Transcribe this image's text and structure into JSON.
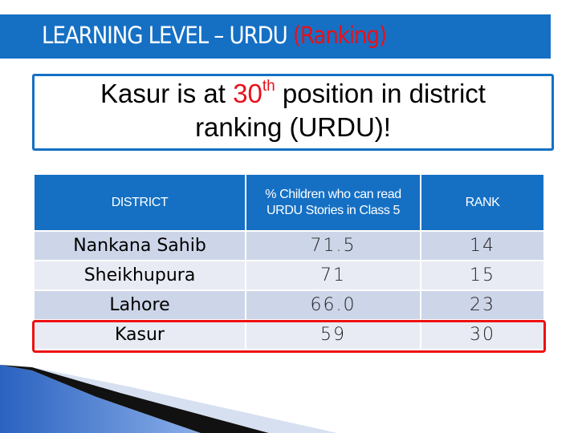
{
  "slide": {
    "title_main": "LEARNING LEVEL – URDU ",
    "title_highlight": "(Ranking)",
    "callout": {
      "prefix": "Kasur is at ",
      "rank_number": "30",
      "rank_suffix": "th",
      "suffix_line1": " position in district",
      "line2": "ranking (URDU)!"
    },
    "table": {
      "headers": [
        "DISTRICT",
        "% Children  who can read URDU  Stories in Class 5",
        "RANK"
      ],
      "rows": [
        [
          "Nankana Sahib",
          "71.5",
          "14"
        ],
        [
          "Sheikhupura",
          "71",
          "15"
        ],
        [
          "Lahore",
          "66.0",
          "23"
        ],
        [
          "Kasur",
          "59",
          "30"
        ]
      ],
      "highlighted_row": "Kasur"
    },
    "colors": {
      "accent": "#1570c4",
      "highlight": "#e8101a",
      "row_odd": "#cdd5e8",
      "row_even": "#e8ebf4"
    }
  }
}
